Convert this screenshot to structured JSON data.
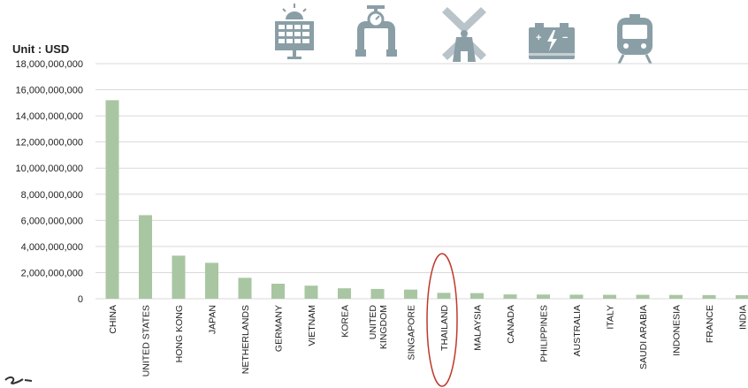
{
  "unit_label": "Unit : USD",
  "icons": [
    "solar-panel-icon",
    "pipeline-icon",
    "wind-turbine-icon",
    "battery-icon",
    "train-icon"
  ],
  "colors": {
    "bar": "#a9c6a2",
    "grid": "#d9d9d9",
    "icon": "#8a9ea6",
    "highlight": "#c0392b"
  },
  "highlighted_category": "THAILAND",
  "chart_data": {
    "type": "bar",
    "title": "",
    "xlabel": "",
    "ylabel": "",
    "categories": [
      "CHINA",
      "UNITED STATES",
      "HONG KONG",
      "JAPAN",
      "NETHERLANDS",
      "GERMANY",
      "VIETNAM",
      "KOREA",
      "UNITED KINGDOM",
      "SINGAPORE",
      "THAILAND",
      "MALAYSIA",
      "CANADA",
      "PHILIPPINES",
      "AUSTRALIA",
      "ITALY",
      "SAUDI ARABIA",
      "INDONESIA",
      "FRANCE",
      "INDIA"
    ],
    "category_lines": [
      [
        "CHINA"
      ],
      [
        "UNITED STATES"
      ],
      [
        "HONG KONG"
      ],
      [
        "JAPAN"
      ],
      [
        "NETHERLANDS"
      ],
      [
        "GERMANY"
      ],
      [
        "VIETNAM"
      ],
      [
        "KOREA"
      ],
      [
        "UNITED",
        "KINGDOM"
      ],
      [
        "SINGAPORE"
      ],
      [
        "THAILAND"
      ],
      [
        "MALAYSIA"
      ],
      [
        "CANADA"
      ],
      [
        "PHILIPPINES"
      ],
      [
        "AUSTRALIA"
      ],
      [
        "ITALY"
      ],
      [
        "SAUDI ARABIA"
      ],
      [
        "INDONESIA"
      ],
      [
        "FRANCE"
      ],
      [
        "INDIA"
      ]
    ],
    "values": [
      15200000000,
      6400000000,
      3300000000,
      2750000000,
      1600000000,
      1150000000,
      1000000000,
      800000000,
      750000000,
      700000000,
      450000000,
      430000000,
      330000000,
      320000000,
      310000000,
      300000000,
      300000000,
      290000000,
      280000000,
      270000000
    ],
    "ylim": [
      0,
      18000000000
    ],
    "yticks": [
      0,
      2000000000,
      4000000000,
      6000000000,
      8000000000,
      10000000000,
      12000000000,
      14000000000,
      16000000000,
      18000000000
    ],
    "ytick_labels": [
      "0",
      "2,000,000,000",
      "4,000,000,000",
      "6,000,000,000",
      "8,000,000,000",
      "10,000,000,000",
      "12,000,000,000",
      "14,000,000,000",
      "16,000,000,000",
      "18,000,000,000"
    ],
    "grid": true,
    "legend": "none"
  }
}
